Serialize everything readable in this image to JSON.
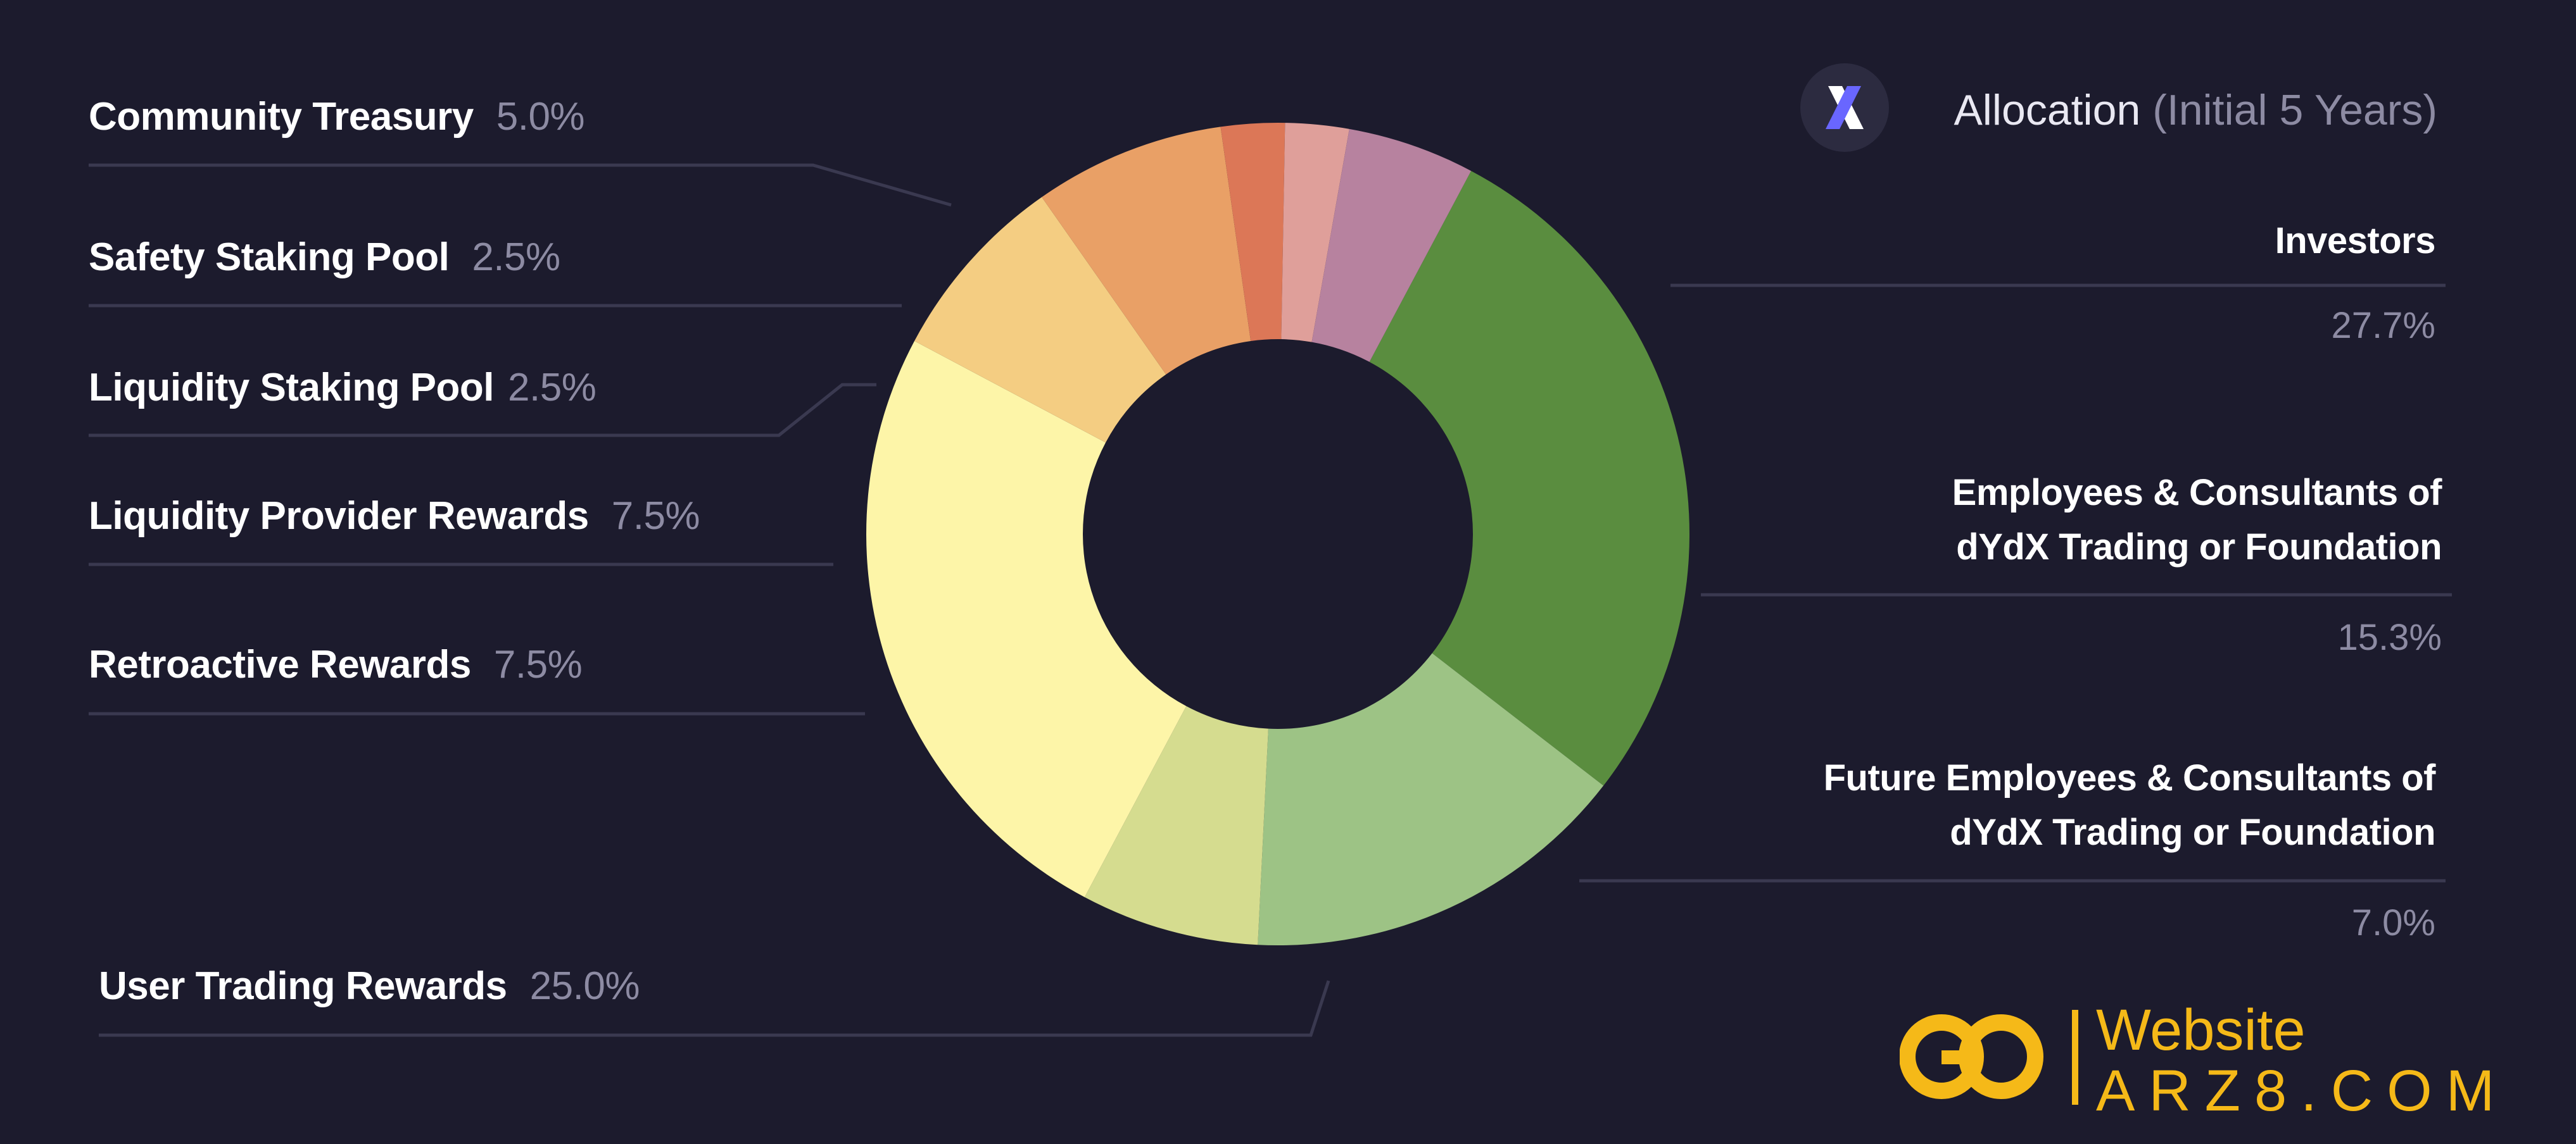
{
  "header": {
    "title": "Allocation",
    "subtitle": "(Initial 5 Years)"
  },
  "chart_data": {
    "type": "pie",
    "style": "donut",
    "categories": [
      "Investors",
      "Employees & Consultants of dYdX Trading or Foundation",
      "Future Employees & Consultants of dYdX Trading or Foundation",
      "User Trading Rewards",
      "Retroactive Rewards",
      "Liquidity Provider Rewards",
      "Liquidity Staking Pool",
      "Safety Staking Pool",
      "Community Treasury"
    ],
    "values": [
      27.7,
      15.3,
      7.0,
      25.0,
      7.5,
      7.5,
      2.5,
      2.5,
      5.0
    ],
    "value_labels": [
      "27.7%",
      "15.3%",
      "7.0%",
      "25.0%",
      "7.5%",
      "7.5%",
      "2.5%",
      "2.5%",
      "5.0%"
    ],
    "colors": [
      "#5a8d3f",
      "#9dc385",
      "#d5dc8f",
      "#fdf5a8",
      "#f4cd82",
      "#e9a066",
      "#dc7757",
      "#df9f9a",
      "#b7829f"
    ]
  },
  "left_labels": [
    {
      "name": "Community Treasury",
      "pct": "5.0%"
    },
    {
      "name": "Safety Staking Pool",
      "pct": "2.5%"
    },
    {
      "name": "Liquidity Staking Pool",
      "pct": "2.5%"
    },
    {
      "name": "Liquidity Provider Rewards",
      "pct": "7.5%"
    },
    {
      "name": "Retroactive Rewards",
      "pct": "7.5%"
    },
    {
      "name": "User Trading Rewards",
      "pct": "25.0%"
    }
  ],
  "right_labels": [
    {
      "line1": "Investors",
      "line2": "",
      "pct": "27.7%"
    },
    {
      "line1": "Employees & Consultants of",
      "line2": "dYdX Trading or Foundation",
      "pct": "15.3%"
    },
    {
      "line1": "Future Employees & Consultants of",
      "line2": "dYdX Trading or Foundation",
      "pct": "7.0%"
    }
  ],
  "watermark": {
    "line1": "Website",
    "line2": "ARZ8.COM",
    "color": "#f5b918"
  },
  "colors": {
    "background": "#1c1b2d",
    "muted_text": "#8d8ba3",
    "leader_line": "#3a3950"
  }
}
